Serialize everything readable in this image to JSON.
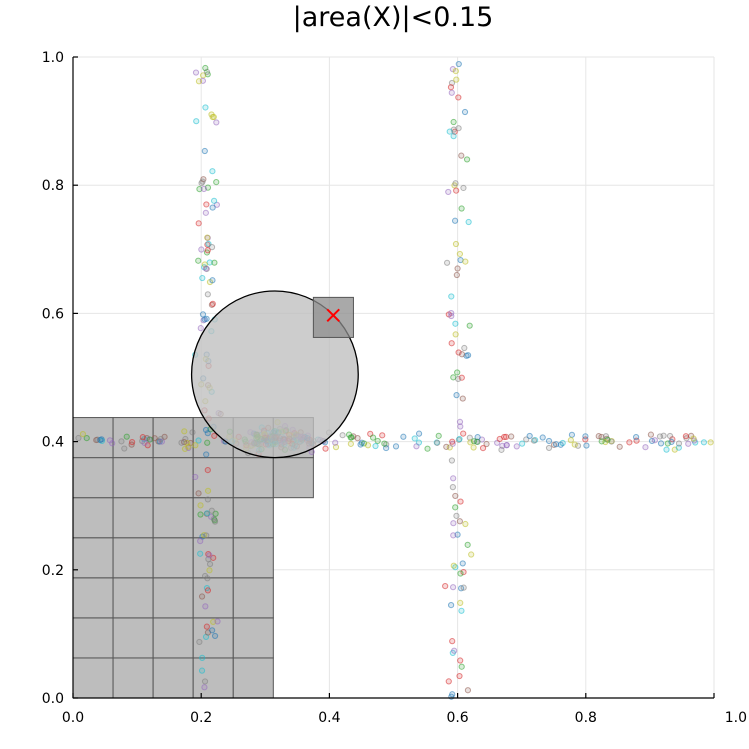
{
  "chart_data": {
    "type": "scatter",
    "title": "|area(X)|<0.15",
    "xlabel": "",
    "ylabel": "",
    "xlim": [
      0,
      1
    ],
    "ylim": [
      0,
      1
    ],
    "xticks": [
      "0.0",
      "0.2",
      "0.4",
      "0.6",
      "0.8",
      "1.0"
    ],
    "yticks": [
      "0.0",
      "0.2",
      "0.4",
      "0.6",
      "0.8",
      "1.0"
    ],
    "grid": true,
    "legend": "none",
    "grid_cells": [
      {
        "x": [
          0.0,
          0.0625,
          0.125,
          0.1875,
          0.25
        ],
        "y0": 0.0,
        "y1": 0.4375,
        "step": 0.0625
      },
      {
        "x": [
          0.3125
        ],
        "y0": 0.3125,
        "y1": 0.4375,
        "step": 0.0625
      }
    ],
    "cells_region": {
      "columns_full": [
        0.0,
        0.0625,
        0.125,
        0.1875,
        0.25
      ],
      "column_short": 0.3125,
      "cell_size": 0.0625,
      "top": 0.4375,
      "short_bottom": 0.3125
    },
    "disk": {
      "cx": 0.315,
      "cy": 0.505,
      "r": 0.13
    },
    "small_square": {
      "x0": 0.375,
      "y0": 0.5625,
      "x1": 0.4375,
      "y1": 0.625
    },
    "marker": {
      "x": 0.406,
      "y": 0.597,
      "symbol": "x",
      "color": "#ff0000"
    },
    "scatter_bands": [
      {
        "orientation": "vertical",
        "center_x": 0.21,
        "y_from": 0.0,
        "y_to": 1.0,
        "count": 120
      },
      {
        "orientation": "vertical",
        "center_x": 0.6,
        "y_from": 0.0,
        "y_to": 1.0,
        "count": 90
      },
      {
        "orientation": "horizontal",
        "center_y": 0.4,
        "x_from": 0.0,
        "x_to": 1.0,
        "count": 180
      },
      {
        "orientation": "cluster",
        "center_x": 0.31,
        "center_y": 0.405,
        "spread_x": 0.07,
        "spread_y": 0.008,
        "count": 140
      }
    ],
    "point_colors": [
      "#1f77b4",
      "#2ca02c",
      "#d62728",
      "#9467bd",
      "#8c564b",
      "#bcbd22",
      "#7f7f7f",
      "#17becf"
    ]
  }
}
